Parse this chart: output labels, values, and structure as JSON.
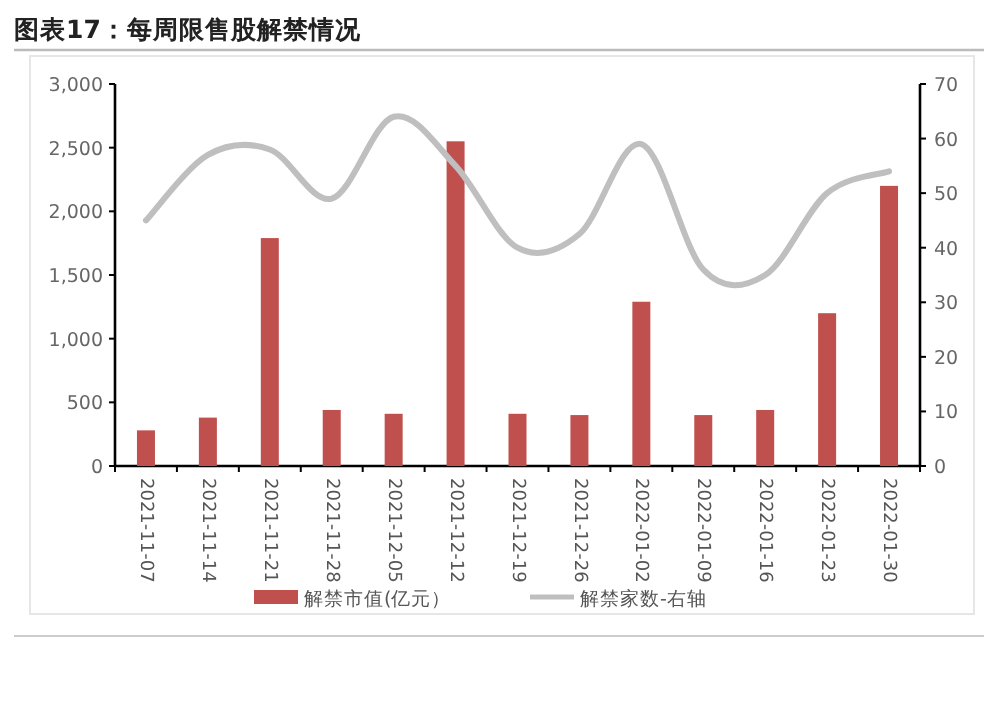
{
  "chart_data": {
    "type": "bar",
    "title": "图表17：每周限售股解禁情况",
    "categories": [
      "2021-11-07",
      "2021-11-14",
      "2021-11-21",
      "2021-11-28",
      "2021-12-05",
      "2021-12-12",
      "2021-12-19",
      "2021-12-26",
      "2022-01-02",
      "2022-01-09",
      "2022-01-16",
      "2022-01-23",
      "2022-01-30"
    ],
    "series": [
      {
        "name": "解禁市值(亿元）",
        "color": "#c0504d",
        "values": [
          280,
          380,
          1790,
          440,
          410,
          2550,
          410,
          400,
          1290,
          400,
          440,
          1200,
          2200
        ]
      },
      {
        "name": "解禁家数-右轴",
        "type": "line",
        "axis": "y2",
        "color": "#bfbfbf",
        "values": [
          45,
          57,
          58,
          49,
          64,
          55,
          40,
          42.5,
          59,
          36,
          35,
          50,
          54
        ]
      }
    ],
    "ylim": [
      0,
      3000
    ],
    "yticks": [
      0,
      500,
      {
        "value": 1000,
        "label": "1,000"
      },
      {
        "value": 1500,
        "label": "1,500"
      },
      {
        "value": 2000,
        "label": "2,000"
      },
      {
        "value": 2500,
        "label": "2,500"
      },
      {
        "value": 3000,
        "label": "3,000"
      }
    ],
    "y2lim": [
      0,
      70
    ],
    "y2ticks": [
      0,
      10,
      20,
      30,
      40,
      50,
      60,
      70
    ],
    "legend": "bottom"
  }
}
